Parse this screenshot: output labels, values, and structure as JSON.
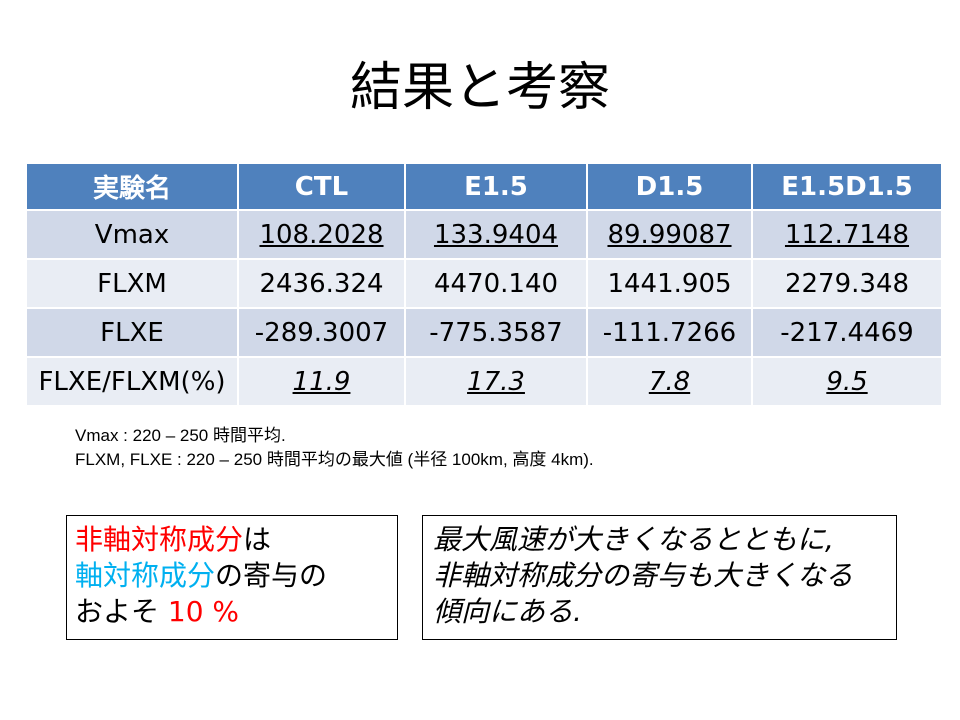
{
  "title": "結果と考察",
  "table": {
    "headers": [
      "実験名",
      "CTL",
      "E1.5",
      "D1.5",
      "E1.5D1.5"
    ],
    "rows": [
      {
        "label": "Vmax",
        "values": [
          "108.2028",
          "133.9404",
          "89.99087",
          "112.7148"
        ]
      },
      {
        "label": "FLXM",
        "values": [
          "2436.324",
          "4470.140",
          "1441.905",
          "2279.348"
        ]
      },
      {
        "label": "FLXE",
        "values": [
          "-289.3007",
          "-775.3587",
          "-111.7266",
          "-217.4469"
        ]
      },
      {
        "label": "FLXE/FLXM(%)",
        "values": [
          "11.9",
          "17.3",
          "7.8",
          "9.5"
        ]
      }
    ]
  },
  "notes": [
    "Vmax : 220 – 250 時間平均.",
    "FLXM, FLXE : 220 – 250 時間平均の最大値 (半径 100km, 高度 4km)."
  ],
  "box_left": {
    "line1_red": "非軸対称成分",
    "line1_rest": "は",
    "line2_cyan": "軸対称成分",
    "line2_rest": "の寄与の",
    "line3_text": "およそ ",
    "line3_red": "10 %"
  },
  "box_right": {
    "lines": [
      "最大風速が大きくなるとともに,",
      "非軸対称成分の寄与も大きくなる",
      "傾向にある."
    ]
  }
}
